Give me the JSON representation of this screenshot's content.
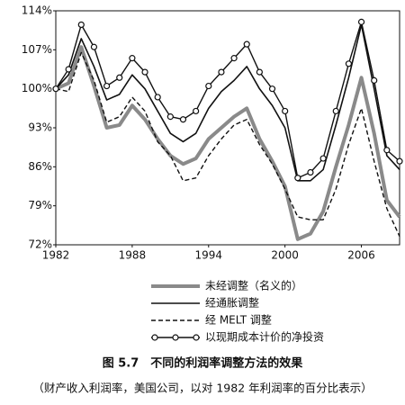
{
  "chart_data": {
    "type": "line",
    "x": [
      1982,
      1983,
      1984,
      1985,
      1986,
      1987,
      1988,
      1989,
      1990,
      1991,
      1992,
      1993,
      1994,
      1995,
      1996,
      1997,
      1998,
      1999,
      2000,
      2001,
      2002,
      2003,
      2004,
      2005,
      2006,
      2007,
      2008,
      2009
    ],
    "series": [
      {
        "name": "未经调整（名义的）",
        "color": "#8a8a8a",
        "line_width": 4,
        "style": "solid",
        "values": [
          100,
          101,
          107.5,
          100.5,
          93,
          93.5,
          97,
          94.5,
          91,
          88,
          86.5,
          87.5,
          91,
          93,
          95,
          96.5,
          91,
          87,
          82.5,
          73,
          74,
          78,
          86,
          93.5,
          102,
          92,
          80,
          77
        ]
      },
      {
        "name": "经通胀调整",
        "color": "#111111",
        "line_width": 1.6,
        "style": "solid",
        "values": [
          100,
          102.5,
          109,
          104,
          98,
          99,
          102.5,
          100,
          96,
          92,
          90.5,
          92,
          96.5,
          99.5,
          101.5,
          104,
          100,
          97,
          93,
          83.5,
          83.5,
          85.5,
          93.5,
          102,
          111.5,
          100,
          88,
          85.5
        ]
      },
      {
        "name": "经 MELT 调整",
        "color": "#111111",
        "line_width": 1.4,
        "style": "dashed",
        "values": [
          100,
          99.5,
          106.5,
          101.5,
          94,
          95,
          98.5,
          96,
          90.5,
          88,
          83.5,
          84,
          88,
          91,
          93.5,
          94.5,
          90,
          86.5,
          82,
          77,
          76.5,
          76.5,
          82,
          90,
          96.5,
          87,
          78.5,
          73.5
        ]
      },
      {
        "name": "以现期成本计价的净投资",
        "color": "#111111",
        "line_width": 1.4,
        "style": "solid",
        "marker": "circle",
        "values": [
          100,
          103.5,
          111.5,
          107.5,
          100.5,
          102,
          105.5,
          103,
          98.5,
          95,
          94.5,
          96,
          100.5,
          103,
          105.5,
          108,
          103,
          100,
          96,
          84,
          85,
          87.5,
          96,
          104.5,
          112,
          101.5,
          89,
          87
        ]
      }
    ],
    "xlim": [
      1982,
      2009
    ],
    "xticks": [
      1982,
      1988,
      1994,
      2000,
      2006
    ],
    "ylim": [
      72,
      114
    ],
    "yticks": [
      {
        "value": 72,
        "label": "72%"
      },
      {
        "value": 79,
        "label": "79%"
      },
      {
        "value": 86,
        "label": "86%"
      },
      {
        "value": 93,
        "label": "93%"
      },
      {
        "value": 100,
        "label": "100%"
      },
      {
        "value": 107,
        "label": "107%"
      },
      {
        "value": 114,
        "label": "114%"
      }
    ],
    "caption": "图 5.7　不同的利润率调整方法的效果",
    "subtitle": "（财产收入利润率，美国公司，以对 1982 年利润率的百分比表示）"
  }
}
